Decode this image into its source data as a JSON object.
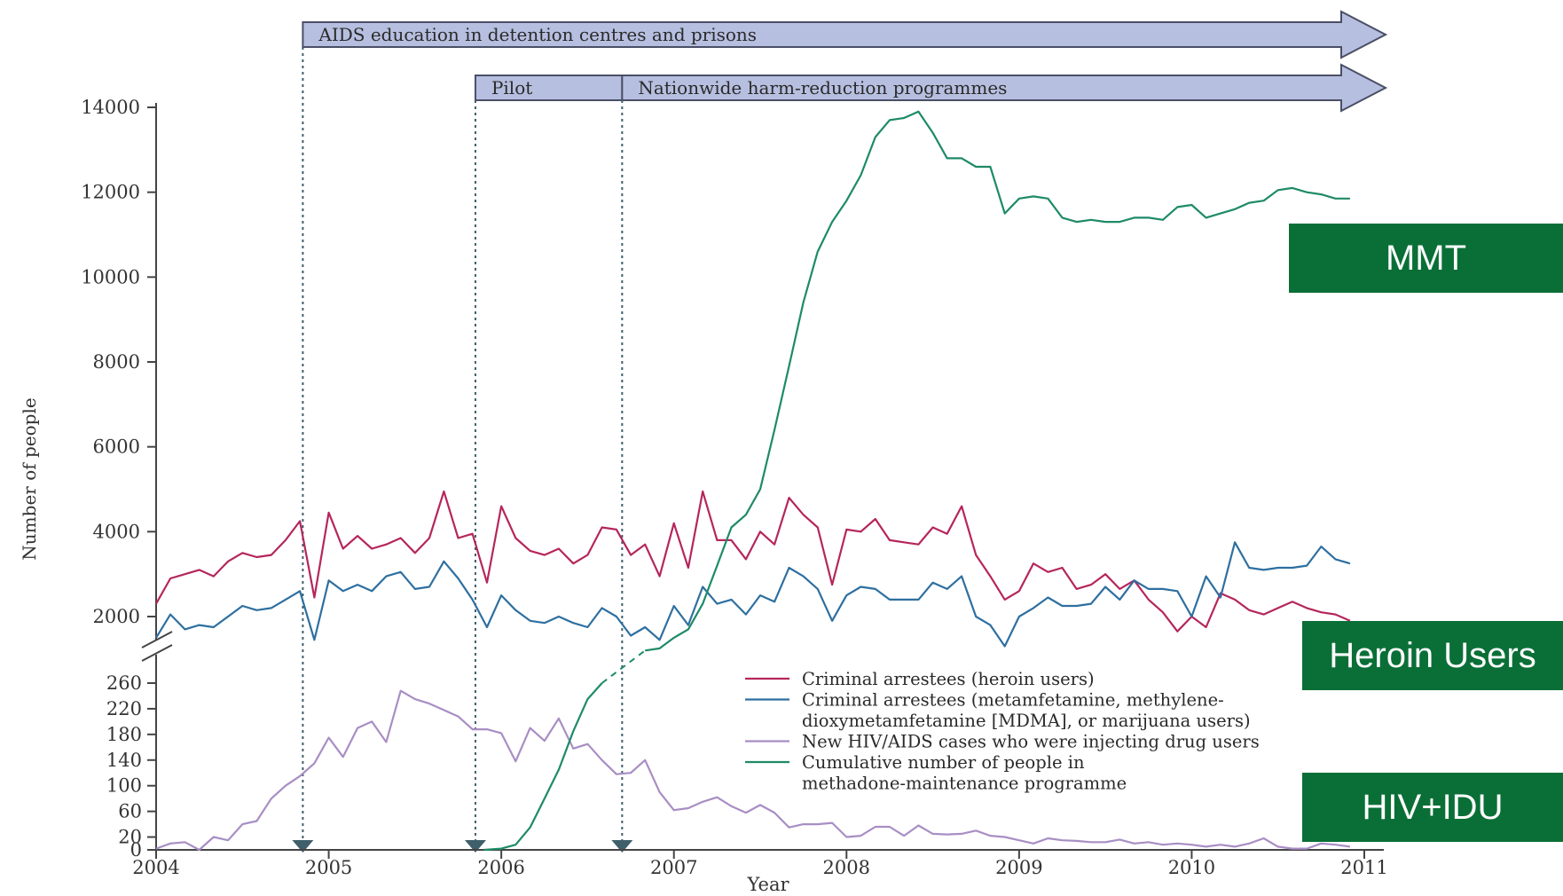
{
  "chart_data": {
    "type": "line",
    "xlabel": "Year",
    "ylabel": "Number of people",
    "x_ticks": [
      "2004",
      "2005",
      "2006",
      "2007",
      "2008",
      "2009",
      "2010",
      "2011"
    ],
    "xlim": [
      2004,
      2011.2
    ],
    "y_upper_ticks": [
      "14000",
      "12000",
      "10000",
      "8000",
      "6000",
      "4000",
      "2000"
    ],
    "y_upper_range": [
      1200,
      14000
    ],
    "y_lower_ticks": [
      "260",
      "220",
      "180",
      "140",
      "100",
      "60",
      "20",
      "0"
    ],
    "y_lower_range": [
      0,
      270
    ],
    "axis_break": "between 260 and 2000",
    "grid": false,
    "legend_placement": "lower-center",
    "banners": [
      {
        "label": "AIDS education in detention centres and prisons",
        "start": 2004.85,
        "end": 2011.2
      },
      {
        "label": "Pilot",
        "start": 2005.85,
        "end": 2006.7
      },
      {
        "label": "Nationwide harm-reduction programmes",
        "start": 2006.7,
        "end": 2011.2
      }
    ],
    "event_markers": [
      2004.85,
      2005.85,
      2006.7
    ],
    "series": [
      {
        "name": "Criminal arrestees (heroin users)",
        "color": "#b5265c",
        "x": [
          2004.0,
          2004.083,
          2004.167,
          2004.25,
          2004.333,
          2004.417,
          2004.5,
          2004.583,
          2004.667,
          2004.75,
          2004.833,
          2004.917,
          2005.0,
          2005.083,
          2005.167,
          2005.25,
          2005.333,
          2005.417,
          2005.5,
          2005.583,
          2005.667,
          2005.75,
          2005.833,
          2005.917,
          2006.0,
          2006.083,
          2006.167,
          2006.25,
          2006.333,
          2006.417,
          2006.5,
          2006.583,
          2006.667,
          2006.75,
          2006.833,
          2006.917,
          2007.0,
          2007.083,
          2007.167,
          2007.25,
          2007.333,
          2007.417,
          2007.5,
          2007.583,
          2007.667,
          2007.75,
          2007.833,
          2007.917,
          2008.0,
          2008.083,
          2008.167,
          2008.25,
          2008.333,
          2008.417,
          2008.5,
          2008.583,
          2008.667,
          2008.75,
          2008.833,
          2008.917,
          2009.0,
          2009.083,
          2009.167,
          2009.25,
          2009.333,
          2009.417,
          2009.5,
          2009.583,
          2009.667,
          2009.75,
          2009.833,
          2009.917,
          2010.0,
          2010.083,
          2010.167,
          2010.25,
          2010.333,
          2010.417,
          2010.5,
          2010.583,
          2010.667,
          2010.75,
          2010.833,
          2010.917
        ],
        "values": [
          2300,
          2900,
          3000,
          3100,
          2950,
          3300,
          3500,
          3400,
          3450,
          3800,
          4250,
          2450,
          4450,
          3600,
          3900,
          3600,
          3700,
          3850,
          3500,
          3850,
          4950,
          3850,
          3950,
          2800,
          4600,
          3850,
          3550,
          3450,
          3600,
          3250,
          3450,
          4100,
          4050,
          3450,
          3700,
          2950,
          4200,
          3150,
          4950,
          3800,
          3800,
          3350,
          4000,
          3700,
          4800,
          4400,
          4100,
          2750,
          4050,
          4000,
          4300,
          3800,
          3750,
          3700,
          4100,
          3950,
          4600,
          3450,
          2950,
          2400,
          2600,
          3250,
          3050,
          3150,
          2650,
          2750,
          3000,
          2650,
          2850,
          2400,
          2100,
          1650,
          2000,
          1750,
          2550,
          2400,
          2150,
          2050,
          2200,
          2350,
          2200,
          2100,
          2050,
          1900
        ]
      },
      {
        "name": "Criminal arrestees (metamfetamine, methylene-dioxymetamfetamine [MDMA], or marijuana users)",
        "color": "#2e6fa0",
        "x": [
          2004.0,
          2004.083,
          2004.167,
          2004.25,
          2004.333,
          2004.417,
          2004.5,
          2004.583,
          2004.667,
          2004.75,
          2004.833,
          2004.917,
          2005.0,
          2005.083,
          2005.167,
          2005.25,
          2005.333,
          2005.417,
          2005.5,
          2005.583,
          2005.667,
          2005.75,
          2005.833,
          2005.917,
          2006.0,
          2006.083,
          2006.167,
          2006.25,
          2006.333,
          2006.417,
          2006.5,
          2006.583,
          2006.667,
          2006.75,
          2006.833,
          2006.917,
          2007.0,
          2007.083,
          2007.167,
          2007.25,
          2007.333,
          2007.417,
          2007.5,
          2007.583,
          2007.667,
          2007.75,
          2007.833,
          2007.917,
          2008.0,
          2008.083,
          2008.167,
          2008.25,
          2008.333,
          2008.417,
          2008.5,
          2008.583,
          2008.667,
          2008.75,
          2008.833,
          2008.917,
          2009.0,
          2009.083,
          2009.167,
          2009.25,
          2009.333,
          2009.417,
          2009.5,
          2009.583,
          2009.667,
          2009.75,
          2009.833,
          2009.917,
          2010.0,
          2010.083,
          2010.167,
          2010.25,
          2010.333,
          2010.417,
          2010.5,
          2010.583,
          2010.667,
          2010.75,
          2010.833,
          2010.917
        ],
        "values": [
          1500,
          2050,
          1700,
          1800,
          1750,
          2000,
          2250,
          2150,
          2200,
          2400,
          2600,
          1450,
          2850,
          2600,
          2750,
          2600,
          2950,
          3050,
          2650,
          2700,
          3300,
          2900,
          2400,
          1750,
          2500,
          2150,
          1900,
          1850,
          2000,
          1850,
          1750,
          2200,
          2000,
          1550,
          1750,
          1450,
          2250,
          1800,
          2700,
          2300,
          2400,
          2050,
          2500,
          2350,
          3150,
          2950,
          2650,
          1900,
          2500,
          2700,
          2650,
          2400,
          2400,
          2400,
          2800,
          2650,
          2950,
          2000,
          1800,
          1300,
          2000,
          2200,
          2450,
          2250,
          2250,
          2300,
          2700,
          2400,
          2850,
          2650,
          2650,
          2600,
          2000,
          2950,
          2450,
          3750,
          3150,
          3100,
          3150,
          3150,
          3200,
          3650,
          3350,
          3250
        ]
      },
      {
        "name": "New HIV/AIDS cases who were injecting drug users",
        "color": "#a88ec4",
        "x": [
          2004.0,
          2004.083,
          2004.167,
          2004.25,
          2004.333,
          2004.417,
          2004.5,
          2004.583,
          2004.667,
          2004.75,
          2004.833,
          2004.917,
          2005.0,
          2005.083,
          2005.167,
          2005.25,
          2005.333,
          2005.417,
          2005.5,
          2005.583,
          2005.667,
          2005.75,
          2005.833,
          2005.917,
          2006.0,
          2006.083,
          2006.167,
          2006.25,
          2006.333,
          2006.417,
          2006.5,
          2006.583,
          2006.667,
          2006.75,
          2006.833,
          2006.917,
          2007.0,
          2007.083,
          2007.167,
          2007.25,
          2007.333,
          2007.417,
          2007.5,
          2007.583,
          2007.667,
          2007.75,
          2007.833,
          2007.917,
          2008.0,
          2008.083,
          2008.167,
          2008.25,
          2008.333,
          2008.417,
          2008.5,
          2008.583,
          2008.667,
          2008.75,
          2008.833,
          2008.917,
          2009.0,
          2009.083,
          2009.167,
          2009.25,
          2009.333,
          2009.417,
          2009.5,
          2009.583,
          2009.667,
          2009.75,
          2009.833,
          2009.917,
          2010.0,
          2010.083,
          2010.167,
          2010.25,
          2010.333,
          2010.417,
          2010.5,
          2010.583,
          2010.667,
          2010.75,
          2010.833,
          2010.917
        ],
        "values": [
          2,
          10,
          12,
          0,
          20,
          15,
          40,
          45,
          80,
          100,
          115,
          135,
          175,
          145,
          190,
          200,
          168,
          248,
          235,
          228,
          218,
          208,
          188,
          188,
          182,
          138,
          190,
          170,
          205,
          158,
          165,
          140,
          118,
          120,
          140,
          90,
          62,
          65,
          75,
          82,
          68,
          58,
          70,
          58,
          35,
          40,
          40,
          42,
          20,
          22,
          36,
          36,
          22,
          38,
          25,
          24,
          25,
          30,
          22,
          20,
          15,
          10,
          18,
          15,
          14,
          12,
          12,
          16,
          10,
          12,
          8,
          10,
          8,
          5,
          8,
          5,
          10,
          18,
          5,
          2,
          2,
          10,
          8,
          5
        ]
      },
      {
        "name": "Cumulative number of people in methadone-maintenance programme",
        "color": "#1e8a68",
        "segment_upper_x": [
          2006.833,
          2006.917,
          2007.0,
          2007.083,
          2007.167,
          2007.25,
          2007.333,
          2007.417,
          2007.5,
          2007.583,
          2007.667,
          2007.75,
          2007.833,
          2007.917,
          2008.0,
          2008.083,
          2008.167,
          2008.25,
          2008.333,
          2008.417,
          2008.5,
          2008.583,
          2008.667,
          2008.75,
          2008.833,
          2008.917,
          2009.0,
          2009.083,
          2009.167,
          2009.25,
          2009.333,
          2009.417,
          2009.5,
          2009.583,
          2009.667,
          2009.75,
          2009.833,
          2009.917,
          2010.0,
          2010.083,
          2010.167,
          2010.25,
          2010.333,
          2010.417,
          2010.5,
          2010.583,
          2010.667,
          2010.75,
          2010.833,
          2010.917
        ],
        "segment_upper_values": [
          1200,
          1250,
          1500,
          1700,
          2300,
          3200,
          4100,
          4400,
          5000,
          6400,
          7900,
          9400,
          10600,
          11300,
          11800,
          12400,
          13300,
          13700,
          13750,
          13900,
          13400,
          12800,
          12800,
          12600,
          12600,
          11500,
          11850,
          11900,
          11850,
          11400,
          11300,
          11350,
          11300,
          11300,
          11400,
          11400,
          11350,
          11650,
          11700,
          11400,
          11500,
          11600,
          11750,
          11800,
          12050,
          12100,
          12000,
          11950,
          11850,
          11850
        ],
        "segment_lower_x": [
          2005.9,
          2006.0,
          2006.083,
          2006.167,
          2006.25,
          2006.333,
          2006.417,
          2006.5,
          2006.583
        ],
        "segment_lower_values": [
          0,
          2,
          8,
          35,
          80,
          125,
          185,
          235,
          260
        ],
        "bridge": "dashed line joining 2006.583 (lower panel) to 2006.833 (upper panel)"
      }
    ]
  },
  "legend": {
    "items": [
      {
        "lines": [
          "Criminal arrestees (heroin users)"
        ],
        "color": "#b5265c"
      },
      {
        "lines": [
          "Criminal arrestees (metamfetamine, methylene-",
          "dioxymetamfetamine [MDMA], or marijuana users)"
        ],
        "color": "#2e6fa0"
      },
      {
        "lines": [
          "New HIV/AIDS cases who were injecting drug users"
        ],
        "color": "#a88ec4"
      },
      {
        "lines": [
          "Cumulative number of people in",
          "methadone-maintenance programme"
        ],
        "color": "#1e8a68"
      }
    ]
  },
  "callouts": {
    "mmt": "MMT",
    "heroin": "Heroin Users",
    "hiv": "HIV+IDU"
  },
  "colors": {
    "banner_fill": "#b7bfe0",
    "banner_stroke": "#4a4f66",
    "callout_bg": "#0a6f36",
    "marker": "#3f5f6b",
    "axis": "#444444"
  }
}
